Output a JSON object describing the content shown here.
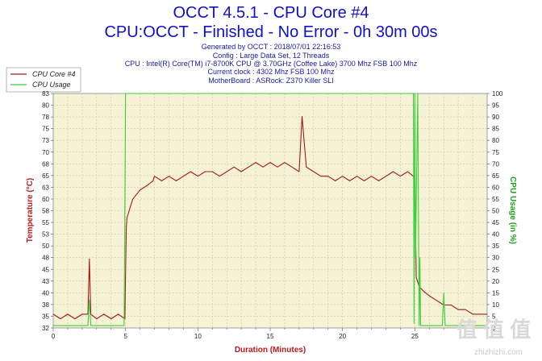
{
  "header": {
    "title_line1": "OCCT 4.5.1 - CPU Core #4",
    "title_line2": "CPU:OCCT - Finished - No Error - 0h 30m 00s",
    "info_lines": [
      "Generated by OCCT : 2018/07/01 22:16:53",
      "Config : Large Data Set, 12 Threads",
      "CPU : Intel(R) Core(TM) i7-8700K CPU @ 3.70GHz (Coffee Lake) 3700 Mhz FSB 100 Mhz",
      "Current clock : 4302 Mhz FSB 100 Mhz",
      "MotherBoard : ASRock: Z370 Killer SLI"
    ]
  },
  "watermark": {
    "text": "zhizhizhi.com",
    "logo_text": "值 值 值"
  },
  "chart_data": {
    "type": "line",
    "title": "OCCT 4.5.1 - CPU Core #4",
    "xlabel": "Duration (Minutes)",
    "ylabel": "Temperature (°C)",
    "y2label": "CPU Usage (in %)",
    "xlim": [
      0,
      30
    ],
    "ylim": [
      32,
      83
    ],
    "y2lim": [
      0,
      100
    ],
    "x_ticks": [
      "0",
      "5",
      "10",
      "15",
      "20",
      "25"
    ],
    "y_ticks": [
      "32",
      "35",
      "38",
      "40",
      "43",
      "45",
      "48",
      "50",
      "53",
      "55",
      "58",
      "60",
      "63",
      "65",
      "68",
      "70",
      "73",
      "75",
      "78",
      "80",
      "83"
    ],
    "y2_ticks": [
      "0",
      "5",
      "10",
      "15",
      "20",
      "25",
      "30",
      "35",
      "40",
      "45",
      "50",
      "55",
      "60",
      "65",
      "70",
      "75",
      "80",
      "85",
      "90",
      "95",
      "100"
    ],
    "grid": true,
    "legend_position": "top-left",
    "colors": {
      "background": "#f6f2d6",
      "grid": "#c7c7a0",
      "temp": "#a11a1a",
      "usage": "#3ccf3c"
    },
    "series": [
      {
        "name": "CPU Core #4",
        "axis": "left",
        "x": [
          0,
          0.5,
          1,
          1.5,
          2,
          2.4,
          2.5,
          2.6,
          3,
          3.5,
          4,
          4.5,
          4.95,
          5.05,
          5.1,
          5.3,
          5.5,
          6,
          6.5,
          6.9,
          7,
          7.5,
          8,
          8.5,
          9,
          9.5,
          10,
          10.5,
          11,
          11.5,
          12,
          12.5,
          13,
          13.5,
          14,
          14.5,
          15,
          15.5,
          16,
          16.5,
          17,
          17.2,
          17.5,
          18,
          18.5,
          19,
          19.5,
          20,
          20.5,
          21,
          21.5,
          22,
          22.5,
          23,
          23.5,
          24,
          24.5,
          24.9,
          25,
          25.1,
          25.3,
          25.6,
          26,
          26.5,
          27,
          27.5,
          28,
          28.5,
          29,
          29.5,
          30
        ],
        "values": [
          35,
          34,
          35,
          34,
          35,
          35,
          47,
          35,
          34,
          35,
          34,
          35,
          34,
          54,
          56,
          58,
          60,
          62,
          63,
          64,
          65,
          64,
          65,
          64,
          65,
          66,
          65,
          66,
          66,
          65,
          66,
          67,
          66,
          67,
          68,
          67,
          68,
          67,
          68,
          67,
          66,
          78,
          67,
          66,
          65,
          65,
          64,
          65,
          64,
          65,
          64,
          65,
          64,
          65,
          66,
          65,
          66,
          65,
          64,
          43,
          41,
          40,
          39,
          38,
          37,
          37,
          36,
          36,
          35,
          35,
          35
        ]
      },
      {
        "name": "CPU Usage",
        "axis": "right",
        "x": [
          0,
          2.4,
          2.5,
          2.6,
          2.7,
          4.9,
          5.0,
          5.05,
          24.9,
          24.95,
          25.0,
          25.05,
          25.2,
          25.3,
          25.35,
          25.4,
          25.5,
          26,
          26.9,
          27.0,
          27.1,
          28,
          30
        ],
        "values": [
          1,
          1,
          12,
          1,
          1,
          1,
          100,
          100,
          100,
          2,
          100,
          30,
          100,
          1,
          30,
          1,
          1,
          1,
          1,
          15,
          1,
          1,
          1
        ]
      }
    ]
  }
}
